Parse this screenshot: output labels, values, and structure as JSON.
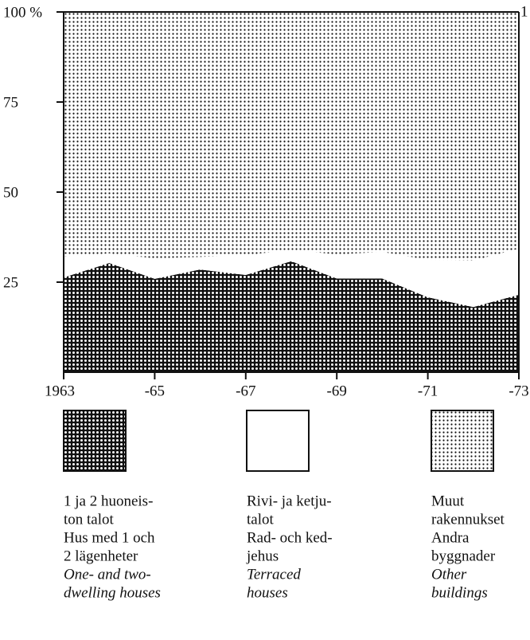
{
  "chart_data": {
    "type": "stacked_area",
    "x": [
      1963,
      1964,
      1965,
      1966,
      1967,
      1968,
      1969,
      1970,
      1971,
      1972,
      1973
    ],
    "xlim": [
      1963,
      1973
    ],
    "xticks": [
      1963,
      {
        "value": 1965,
        "label": "-65"
      },
      {
        "value": 1967,
        "label": "-67"
      },
      {
        "value": 1969,
        "label": "-69"
      },
      {
        "value": 1971,
        "label": "-71"
      },
      {
        "value": 1973,
        "label": "-73"
      }
    ],
    "ylim": [
      0,
      100
    ],
    "yticks": [
      {
        "value": 100,
        "label": "100 %"
      },
      75,
      50,
      25
    ],
    "annotation": "1",
    "series": [
      {
        "name": [
          "1 ja 2 huoneis-",
          "ton talot",
          "Hus med 1 och",
          "2 lägenheter",
          "One- and two-",
          "dwelling houses"
        ],
        "italic_from": 4,
        "color": "#111111",
        "pattern": "light-dots",
        "values": [
          26.3,
          30.3,
          25.9,
          28.5,
          27.0,
          30.8,
          26.0,
          26.0,
          20.8,
          18.1,
          21.5
        ]
      },
      {
        "name": [
          "Rivi- ja ketju-",
          "talot",
          "Rad- och ked-",
          "jehus",
          "Terraced",
          "houses"
        ],
        "italic_from": 4,
        "color": "#ffffff",
        "pattern": "none",
        "values": [
          5.8,
          2.7,
          5.7,
          3.5,
          5.5,
          3.2,
          6.7,
          7.4,
          10.4,
          12.9,
          12.8
        ]
      },
      {
        "name": [
          "Muut",
          "rakennukset",
          "Andra",
          "byggnader",
          "Other",
          "buildings"
        ],
        "italic_from": 4,
        "color": "#ffffff",
        "pattern": "dark-dots",
        "values": [
          67.9,
          67.0,
          68.4,
          68.0,
          67.5,
          66.0,
          67.3,
          66.6,
          68.8,
          69.0,
          65.7
        ]
      }
    ]
  }
}
